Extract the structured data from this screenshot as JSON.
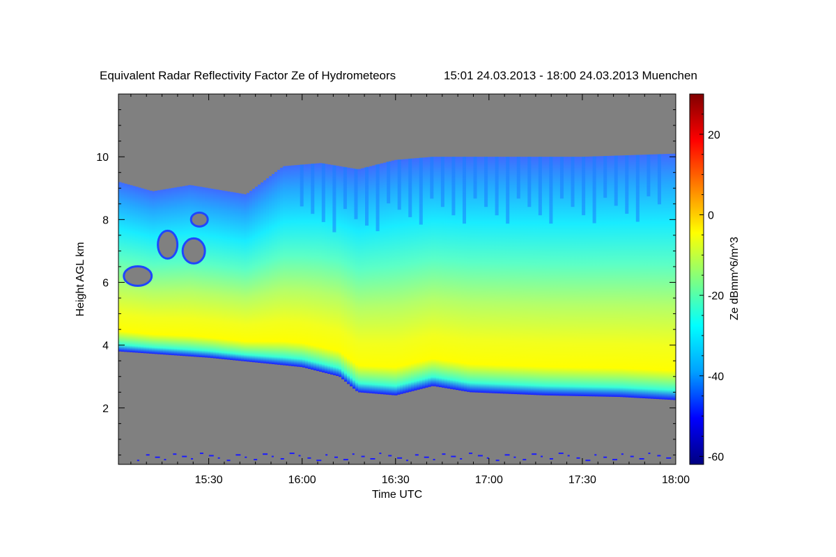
{
  "chart_data": {
    "type": "heatmap",
    "title": "Equivalent Radar Reflectivity Factor Ze of Hydrometeors",
    "time_range_label": "15:01 24.03.2013 - 18:00 24.03.2013 Muenchen",
    "xlabel": "Time UTC",
    "ylabel": "Height AGL km",
    "x_axis": {
      "unit": "UTC",
      "range": [
        "15:01",
        "18:00"
      ],
      "tick_labels": [
        "15:30",
        "16:00",
        "16:30",
        "17:00",
        "17:30",
        "18:00"
      ],
      "tick_hours": [
        15.5,
        16.0,
        16.5,
        17.0,
        17.5,
        18.0
      ]
    },
    "y_axis": {
      "unit": "km",
      "range": [
        0.2,
        12.0
      ],
      "ticks": [
        2,
        4,
        6,
        8,
        10
      ]
    },
    "colorbar": {
      "label": "Ze dBmm^6/m^3",
      "range": [
        -62,
        30
      ],
      "ticks": [
        -60,
        -40,
        -20,
        0,
        20
      ],
      "colors": [
        "#000080",
        "#0000ff",
        "#00a0ff",
        "#00ffff",
        "#80ff80",
        "#ffff00",
        "#ff8000",
        "#ff0000",
        "#800000"
      ]
    },
    "no_data_color": "#808080",
    "echo_regions": [
      {
        "description_free": true,
        "base_km_by_time": [
          [
            15.02,
            3.8
          ],
          [
            15.5,
            3.6
          ],
          [
            16.0,
            3.3
          ],
          [
            16.2,
            3.0
          ],
          [
            16.3,
            2.5
          ],
          [
            16.5,
            2.4
          ],
          [
            16.7,
            2.7
          ],
          [
            16.9,
            2.5
          ],
          [
            17.3,
            2.4
          ],
          [
            17.7,
            2.35
          ],
          [
            18.0,
            2.25
          ]
        ],
        "top_km_by_time": [
          [
            15.02,
            9.2
          ],
          [
            15.2,
            8.9
          ],
          [
            15.4,
            9.1
          ],
          [
            15.7,
            8.8
          ],
          [
            15.9,
            9.7
          ],
          [
            16.1,
            9.8
          ],
          [
            16.3,
            9.6
          ],
          [
            16.5,
            9.9
          ],
          [
            16.7,
            10.0
          ],
          [
            17.0,
            10.0
          ],
          [
            17.5,
            10.0
          ],
          [
            18.0,
            10.1
          ]
        ],
        "core_km": [
          3.6,
          4.4
        ],
        "core_ze": -2
      }
    ]
  }
}
